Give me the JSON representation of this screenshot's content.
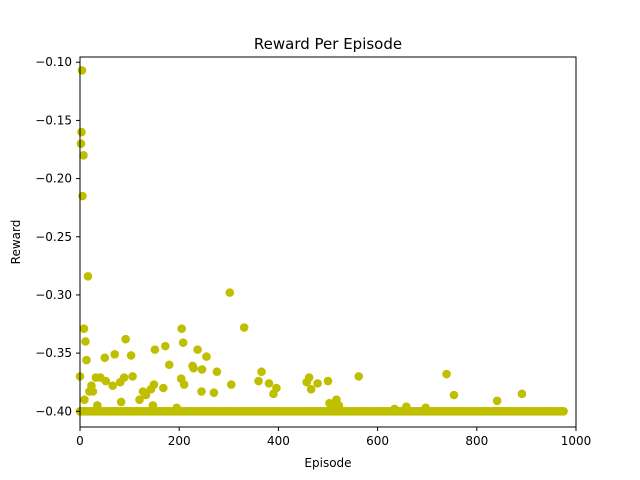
{
  "chart_data": {
    "type": "scatter",
    "title": "Reward Per Episode",
    "xlabel": "Episode",
    "ylabel": "Reward",
    "xlim": [
      0,
      1000
    ],
    "ylim": [
      -0.4135,
      -0.0955
    ],
    "x_ticks": [
      0,
      200,
      400,
      600,
      800,
      1000
    ],
    "x_tick_labels": [
      "0",
      "200",
      "400",
      "600",
      "800",
      "1000"
    ],
    "y_ticks": [
      -0.4,
      -0.35,
      -0.3,
      -0.25,
      -0.2,
      -0.15,
      -0.1
    ],
    "y_tick_labels": [
      "−0.40",
      "−0.35",
      "−0.30",
      "−0.25",
      "−0.20",
      "−0.15",
      "−0.10"
    ],
    "grid": false,
    "legend": "none",
    "marker_color": "#bfbf00",
    "baseline": {
      "value": -0.4,
      "x_start": 0,
      "x_end": 975,
      "x_step": 3
    },
    "series": [
      {
        "points": [
          [
            0,
            -0.37
          ],
          [
            1,
            -0.4
          ],
          [
            2,
            -0.17
          ],
          [
            3,
            -0.16
          ],
          [
            4,
            -0.107
          ],
          [
            5,
            -0.215
          ],
          [
            7,
            -0.18
          ],
          [
            8,
            -0.329
          ],
          [
            9,
            -0.39
          ],
          [
            11,
            -0.34
          ],
          [
            13,
            -0.356
          ],
          [
            16,
            -0.284
          ],
          [
            19,
            -0.383
          ],
          [
            23,
            -0.378
          ],
          [
            26,
            -0.383
          ],
          [
            32,
            -0.371
          ],
          [
            35,
            -0.395
          ],
          [
            41,
            -0.371
          ],
          [
            50,
            -0.354
          ],
          [
            52,
            -0.374
          ],
          [
            66,
            -0.378
          ],
          [
            70,
            -0.351
          ],
          [
            81,
            -0.375
          ],
          [
            83,
            -0.392
          ],
          [
            89,
            -0.371
          ],
          [
            92,
            -0.338
          ],
          [
            103,
            -0.352
          ],
          [
            106,
            -0.37
          ],
          [
            120,
            -0.39
          ],
          [
            127,
            -0.383
          ],
          [
            133,
            -0.386
          ],
          [
            143,
            -0.381
          ],
          [
            147,
            -0.395
          ],
          [
            149,
            -0.377
          ],
          [
            151,
            -0.347
          ],
          [
            168,
            -0.38
          ],
          [
            172,
            -0.344
          ],
          [
            180,
            -0.36
          ],
          [
            195,
            -0.397
          ],
          [
            204,
            -0.372
          ],
          [
            205,
            -0.329
          ],
          [
            208,
            -0.341
          ],
          [
            210,
            -0.377
          ],
          [
            227,
            -0.361
          ],
          [
            229,
            -0.363
          ],
          [
            237,
            -0.347
          ],
          [
            245,
            -0.383
          ],
          [
            246,
            -0.364
          ],
          [
            255,
            -0.353
          ],
          [
            270,
            -0.384
          ],
          [
            276,
            -0.366
          ],
          [
            302,
            -0.298
          ],
          [
            305,
            -0.377
          ],
          [
            331,
            -0.328
          ],
          [
            360,
            -0.374
          ],
          [
            366,
            -0.366
          ],
          [
            381,
            -0.376
          ],
          [
            390,
            -0.385
          ],
          [
            396,
            -0.38
          ],
          [
            457,
            -0.375
          ],
          [
            462,
            -0.371
          ],
          [
            466,
            -0.381
          ],
          [
            479,
            -0.376
          ],
          [
            500,
            -0.374
          ],
          [
            503,
            -0.393
          ],
          [
            510,
            -0.396
          ],
          [
            517,
            -0.39
          ],
          [
            522,
            -0.395
          ],
          [
            562,
            -0.37
          ],
          [
            634,
            -0.398
          ],
          [
            658,
            -0.396
          ],
          [
            697,
            -0.397
          ],
          [
            739,
            -0.368
          ],
          [
            754,
            -0.386
          ],
          [
            841,
            -0.391
          ],
          [
            891,
            -0.385
          ]
        ]
      }
    ]
  }
}
